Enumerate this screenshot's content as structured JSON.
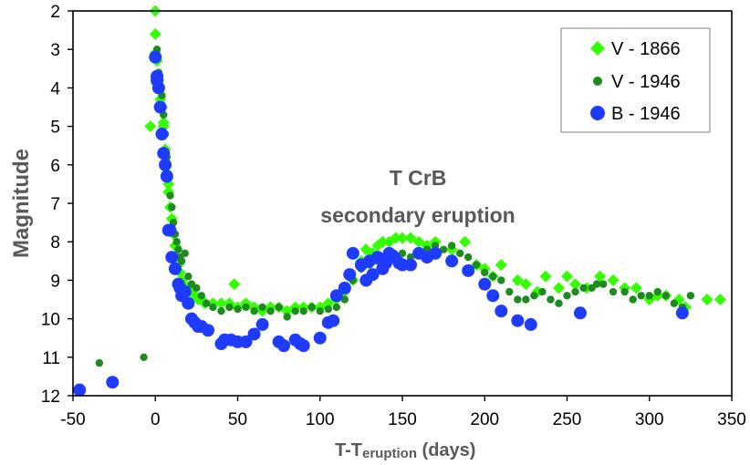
{
  "chart_data": {
    "type": "scatter",
    "title": "",
    "xlabel": "T-T",
    "xlabel_sub": "eruption",
    "xlabel_suffix": " (days)",
    "ylabel": "Magnitude",
    "xlim": [
      -50,
      350
    ],
    "ylim": [
      2,
      12
    ],
    "y_inverted": true,
    "grid": false,
    "x_ticks": [
      "-50",
      "0",
      "50",
      "100",
      "150",
      "200",
      "250",
      "300",
      "350"
    ],
    "y_ticks": [
      "2",
      "3",
      "4",
      "5",
      "6",
      "7",
      "8",
      "9",
      "10",
      "11",
      "12"
    ],
    "annotation": [
      "T CrB",
      "secondary eruption"
    ],
    "legend_position": "top-right",
    "series": [
      {
        "name": "V - 1866",
        "marker": "diamond",
        "color": "#33ff00",
        "x": [
          0,
          0,
          0,
          1,
          1,
          2,
          3,
          4,
          5,
          5,
          6,
          7,
          8,
          8,
          9,
          10,
          11,
          12,
          13,
          14,
          15,
          16,
          17,
          18,
          20,
          22,
          24,
          26,
          28,
          30,
          35,
          40,
          45,
          48,
          50,
          55,
          60,
          65,
          70,
          75,
          80,
          85,
          90,
          95,
          100,
          105,
          110,
          115,
          120,
          125,
          128,
          132,
          135,
          138,
          142,
          146,
          150,
          155,
          160,
          165,
          170,
          180,
          188,
          195,
          200,
          205,
          210,
          220,
          225,
          232,
          237,
          245,
          250,
          255,
          262,
          270,
          278,
          285,
          292,
          300,
          305,
          310,
          318,
          322,
          335,
          343,
          -3
        ],
        "y": [
          2.0,
          2.6,
          3.1,
          3.3,
          3.9,
          3.8,
          4.3,
          4.5,
          4.9,
          5.0,
          5.6,
          6.2,
          6.5,
          6.7,
          7.1,
          7.4,
          7.8,
          8.1,
          8.4,
          8.6,
          8.8,
          9.0,
          9.1,
          9.2,
          9.2,
          9.3,
          9.4,
          9.5,
          9.5,
          9.6,
          9.6,
          9.6,
          9.6,
          9.1,
          9.7,
          9.6,
          9.7,
          9.8,
          9.7,
          9.7,
          9.8,
          9.7,
          9.7,
          9.7,
          9.7,
          9.6,
          9.5,
          9.3,
          9.0,
          8.5,
          8.2,
          8.3,
          8.1,
          8.0,
          8.0,
          7.9,
          7.9,
          7.9,
          8.0,
          8.1,
          8.0,
          8.2,
          8.0,
          8.6,
          8.7,
          8.9,
          8.6,
          9.0,
          9.1,
          9.3,
          8.9,
          9.2,
          8.9,
          9.1,
          9.2,
          8.9,
          9.0,
          9.2,
          9.2,
          9.5,
          9.4,
          9.4,
          9.5,
          9.7,
          9.5,
          9.5,
          5.0
        ]
      },
      {
        "name": "V - 1946",
        "marker": "circle-small",
        "color": "#1f8a1f",
        "x": [
          -34,
          -7,
          1,
          2,
          3,
          4,
          5,
          6,
          7,
          8,
          9,
          10,
          11,
          12,
          13,
          14,
          15,
          16,
          18,
          20,
          22,
          25,
          28,
          31,
          35,
          40,
          45,
          50,
          55,
          60,
          65,
          70,
          75,
          80,
          85,
          90,
          95,
          100,
          105,
          110,
          115,
          120,
          125,
          130,
          135,
          140,
          145,
          150,
          155,
          160,
          165,
          170,
          175,
          180,
          185,
          190,
          195,
          200,
          205,
          210,
          215,
          220,
          225,
          230,
          235,
          240,
          245,
          250,
          255,
          260,
          265,
          268,
          272,
          278,
          285,
          290,
          295,
          300,
          305,
          310,
          315,
          320,
          325
        ],
        "y": [
          11.15,
          11.0,
          3.0,
          3.6,
          4.0,
          4.2,
          4.7,
          5.2,
          5.8,
          6.3,
          6.8,
          7.1,
          7.5,
          7.8,
          8.0,
          8.2,
          8.4,
          8.5,
          8.3,
          8.9,
          9.1,
          9.2,
          9.4,
          9.6,
          9.7,
          9.8,
          9.7,
          9.75,
          9.7,
          9.8,
          9.7,
          9.8,
          9.7,
          9.95,
          9.8,
          9.8,
          9.7,
          9.8,
          9.75,
          9.7,
          9.5,
          9.0,
          8.7,
          8.6,
          8.5,
          8.4,
          8.3,
          8.3,
          8.4,
          8.3,
          8.2,
          8.1,
          8.2,
          8.1,
          8.3,
          8.4,
          8.6,
          8.8,
          8.9,
          9.0,
          9.3,
          9.5,
          9.5,
          9.4,
          9.3,
          9.5,
          9.6,
          9.4,
          9.3,
          9.2,
          9.2,
          9.1,
          9.1,
          9.3,
          9.3,
          9.5,
          9.4,
          9.4,
          9.3,
          9.4,
          9.6,
          9.7,
          9.4
        ]
      },
      {
        "name": "B - 1946",
        "marker": "circle",
        "color": "#1f3bff",
        "x": [
          -46,
          -26,
          0,
          1,
          1,
          2,
          3,
          4,
          5,
          6,
          7,
          8,
          9,
          10,
          12,
          14,
          15,
          16,
          18,
          20,
          22,
          24,
          26,
          28,
          32,
          40,
          42,
          46,
          50,
          55,
          60,
          65,
          75,
          78,
          85,
          88,
          90,
          100,
          105,
          108,
          110,
          115,
          118,
          120,
          125,
          128,
          130,
          132,
          135,
          138,
          140,
          142,
          145,
          148,
          150,
          155,
          160,
          165,
          170,
          180,
          190,
          200,
          205,
          210,
          220,
          228,
          258,
          320
        ],
        "y": [
          11.85,
          11.65,
          3.2,
          3.7,
          3.8,
          4.0,
          4.5,
          5.2,
          5.7,
          6.0,
          6.3,
          7.7,
          7.7,
          8.4,
          8.7,
          9.1,
          9.2,
          9.4,
          9.3,
          9.6,
          10.0,
          10.1,
          10.2,
          10.2,
          10.3,
          10.65,
          10.55,
          10.55,
          10.6,
          10.6,
          10.4,
          10.15,
          10.6,
          10.7,
          10.55,
          10.65,
          10.7,
          10.5,
          10.1,
          10.05,
          9.4,
          9.2,
          8.85,
          8.3,
          8.6,
          9.0,
          8.5,
          8.85,
          8.4,
          8.7,
          8.55,
          8.3,
          8.4,
          8.55,
          8.6,
          8.6,
          8.3,
          8.4,
          8.3,
          8.5,
          8.75,
          9.1,
          9.4,
          9.8,
          10.05,
          10.15,
          9.85,
          9.85
        ]
      }
    ]
  }
}
